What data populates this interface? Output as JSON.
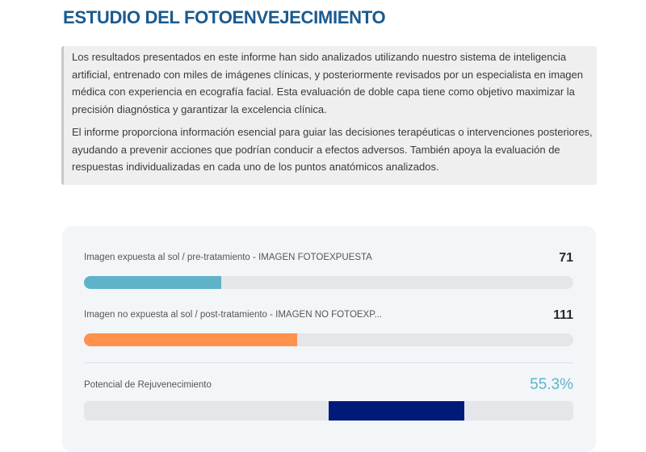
{
  "title": "ESTUDIO DEL FOTOENVEJECIMIENTO",
  "intro": {
    "paragraphs": [
      "Los resultados presentados en este informe han sido analizados utilizando nuestro sistema de inteligencia artificial, entrenado con miles de imágenes clínicas, y posteriormente revisados por un especialista en imagen médica con experiencia en ecografía facial. Esta evaluación de doble capa tiene como objetivo maximizar la precisión diagnóstica y garantizar la excelencia clínica.",
      "El informe proporciona información esencial para guiar las decisiones terapéuticas o intervenciones posteriores, ayudando a prevenir acciones que podrían conducir a efectos adversos. También apoya la evaluación de respuestas individualizadas en cada uno de los puntos anatómicos analizados."
    ]
  },
  "metrics": [
    {
      "label": "Imagen expuesta al sol / pre-tratamiento - IMAGEN FOTOEXPUESTA",
      "value": "71",
      "fill_percent": 28,
      "color": "#5fb3c9"
    },
    {
      "label": "Imagen no expuesta al sol / post-tratamiento - IMAGEN NO FOTOEXP...",
      "value": "111",
      "fill_percent": 43.6,
      "color": "#ff914d"
    }
  ],
  "rejuvenation": {
    "label": "Potencial de Rejuvenecimiento",
    "value": "55.3%",
    "percent": 55.3,
    "color": "#001a7a",
    "value_color": "#5fb3c9"
  }
}
